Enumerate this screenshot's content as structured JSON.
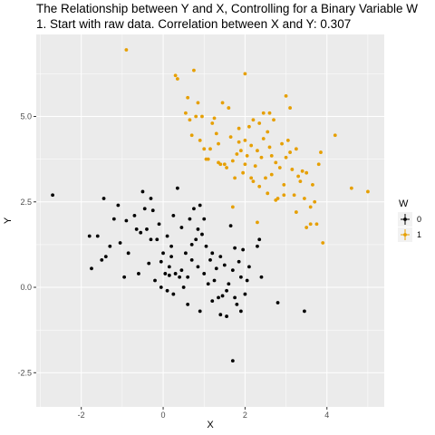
{
  "chart_data": {
    "type": "scatter",
    "title": "The Relationship between Y and X, Controlling for a Binary Variable W",
    "subtitle": "1. Start with raw data. Correlation between X and Y: 0.307",
    "xlabel": "X",
    "ylabel": "Y",
    "xlim": [
      -3.1,
      5.4
    ],
    "ylim": [
      -3.5,
      7.4
    ],
    "xticks": [
      -2,
      0,
      2,
      4
    ],
    "xtick_labels": [
      "-2",
      "0",
      "2",
      "4"
    ],
    "yticks": [
      -2.5,
      0.0,
      2.5,
      5.0
    ],
    "ytick_labels": [
      "-2.5",
      "0.0",
      "2.5",
      "5.0"
    ],
    "grid": true,
    "panel_background": "#ebebeb",
    "legend": {
      "title": "W",
      "position": "right",
      "entries": [
        "0",
        "1"
      ]
    },
    "series": [
      {
        "name": "0",
        "color": "#000000",
        "points": [
          [
            -2.7,
            2.7
          ],
          [
            -1.8,
            1.5
          ],
          [
            -1.75,
            0.55
          ],
          [
            -1.6,
            1.5
          ],
          [
            -1.5,
            0.8
          ],
          [
            -1.45,
            2.6
          ],
          [
            -1.4,
            0.9
          ],
          [
            -1.3,
            1.2
          ],
          [
            -1.2,
            2.0
          ],
          [
            -1.1,
            2.4
          ],
          [
            -1.05,
            1.3
          ],
          [
            -0.95,
            0.3
          ],
          [
            -0.9,
            1.95
          ],
          [
            -0.85,
            1.0
          ],
          [
            -0.7,
            2.1
          ],
          [
            -0.65,
            1.7
          ],
          [
            -0.6,
            0.4
          ],
          [
            -0.55,
            1.6
          ],
          [
            -0.5,
            2.8
          ],
          [
            -0.45,
            2.3
          ],
          [
            -0.4,
            1.7
          ],
          [
            -0.35,
            0.7
          ],
          [
            -0.3,
            1.4
          ],
          [
            -0.25,
            2.25
          ],
          [
            -0.2,
            0.2
          ],
          [
            -0.15,
            1.4
          ],
          [
            -0.1,
            1.85
          ],
          [
            -0.05,
            0.0
          ],
          [
            0.0,
            1.0
          ],
          [
            0.05,
            0.4
          ],
          [
            0.1,
            1.5
          ],
          [
            0.15,
            0.6
          ],
          [
            0.2,
            1.2
          ],
          [
            0.25,
            2.1
          ],
          [
            0.3,
            0.4
          ],
          [
            0.35,
            2.9
          ],
          [
            0.4,
            0.3
          ],
          [
            0.45,
            1.75
          ],
          [
            0.5,
            0.0
          ],
          [
            0.55,
            1.0
          ],
          [
            0.6,
            0.3
          ],
          [
            0.65,
            2.0
          ],
          [
            0.7,
            0.8
          ],
          [
            0.75,
            2.3
          ],
          [
            0.8,
            1.4
          ],
          [
            0.85,
            0.6
          ],
          [
            0.9,
            2.4
          ],
          [
            0.95,
            1.55
          ],
          [
            1.0,
            0.4
          ],
          [
            1.05,
            1.2
          ],
          [
            1.1,
            0.1
          ],
          [
            1.15,
            0.8
          ],
          [
            1.2,
            1.0
          ],
          [
            1.25,
            0.2
          ],
          [
            1.3,
            0.55
          ],
          [
            1.35,
            -0.3
          ],
          [
            1.4,
            0.9
          ],
          [
            1.45,
            -0.25
          ],
          [
            1.5,
            0.65
          ],
          [
            1.55,
            -0.1
          ],
          [
            1.6,
            0.1
          ],
          [
            1.65,
            1.8
          ],
          [
            1.7,
            0.5
          ],
          [
            1.75,
            1.15
          ],
          [
            1.8,
            -0.5
          ],
          [
            1.85,
            0.75
          ],
          [
            1.9,
            0.3
          ],
          [
            1.95,
            1.1
          ],
          [
            2.0,
            -0.2
          ],
          [
            2.05,
            0.2
          ],
          [
            2.1,
            0.6
          ],
          [
            2.3,
            1.2
          ],
          [
            2.4,
            0.3
          ],
          [
            0.1,
            -0.1
          ],
          [
            0.25,
            -0.2
          ],
          [
            0.6,
            -0.5
          ],
          [
            0.9,
            -0.7
          ],
          [
            1.2,
            -0.4
          ],
          [
            1.4,
            -0.8
          ],
          [
            1.55,
            -0.85
          ],
          [
            1.75,
            -0.3
          ],
          [
            1.9,
            -0.7
          ],
          [
            2.8,
            -0.45
          ],
          [
            3.45,
            -0.7
          ],
          [
            1.7,
            -2.15
          ],
          [
            2.35,
            1.4
          ],
          [
            -0.05,
            0.75
          ],
          [
            0.45,
            0.5
          ],
          [
            0.7,
            1.25
          ],
          [
            1.0,
            2.0
          ],
          [
            0.2,
            0.9
          ],
          [
            0.85,
            1.7
          ],
          [
            -0.3,
            2.6
          ],
          [
            0.15,
            0.35
          ]
        ]
      },
      {
        "name": "1",
        "color": "#e69f00",
        "points": [
          [
            -0.9,
            6.95
          ],
          [
            0.3,
            6.2
          ],
          [
            0.35,
            6.1
          ],
          [
            0.75,
            6.35
          ],
          [
            2.0,
            6.25
          ],
          [
            0.55,
            5.1
          ],
          [
            0.6,
            5.55
          ],
          [
            0.65,
            4.9
          ],
          [
            0.7,
            4.45
          ],
          [
            0.8,
            5.0
          ],
          [
            0.85,
            5.4
          ],
          [
            0.9,
            4.3
          ],
          [
            0.95,
            5.0
          ],
          [
            1.0,
            4.05
          ],
          [
            1.05,
            3.75
          ],
          [
            1.1,
            3.75
          ],
          [
            1.15,
            4.05
          ],
          [
            1.2,
            4.8
          ],
          [
            1.25,
            4.95
          ],
          [
            1.3,
            4.5
          ],
          [
            1.35,
            4.2
          ],
          [
            1.4,
            3.6
          ],
          [
            1.45,
            5.4
          ],
          [
            1.5,
            3.6
          ],
          [
            1.55,
            3.5
          ],
          [
            1.6,
            5.25
          ],
          [
            1.65,
            4.4
          ],
          [
            1.7,
            3.7
          ],
          [
            1.75,
            3.2
          ],
          [
            1.8,
            3.9
          ],
          [
            1.85,
            4.65
          ],
          [
            1.9,
            4.0
          ],
          [
            1.95,
            3.35
          ],
          [
            2.0,
            4.3
          ],
          [
            2.05,
            3.85
          ],
          [
            2.1,
            4.7
          ],
          [
            2.15,
            4.15
          ],
          [
            2.2,
            3.1
          ],
          [
            2.25,
            3.55
          ],
          [
            2.3,
            4.0
          ],
          [
            2.35,
            4.8
          ],
          [
            2.4,
            3.8
          ],
          [
            2.45,
            4.35
          ],
          [
            2.5,
            3.2
          ],
          [
            2.55,
            4.55
          ],
          [
            2.6,
            4.1
          ],
          [
            2.65,
            3.3
          ],
          [
            2.7,
            4.9
          ],
          [
            2.75,
            3.65
          ],
          [
            2.8,
            2.6
          ],
          [
            2.85,
            3.5
          ],
          [
            2.9,
            4.2
          ],
          [
            2.95,
            3.0
          ],
          [
            3.0,
            3.8
          ],
          [
            3.05,
            4.3
          ],
          [
            3.1,
            3.95
          ],
          [
            3.15,
            3.45
          ],
          [
            3.2,
            2.7
          ],
          [
            3.25,
            4.05
          ],
          [
            3.3,
            3.25
          ],
          [
            3.35,
            3.1
          ],
          [
            3.4,
            3.4
          ],
          [
            3.45,
            2.6
          ],
          [
            3.5,
            3.35
          ],
          [
            3.6,
            2.35
          ],
          [
            3.65,
            3.0
          ],
          [
            3.7,
            2.5
          ],
          [
            3.8,
            3.6
          ],
          [
            3.9,
            1.3
          ],
          [
            4.2,
            4.45
          ],
          [
            4.6,
            2.9
          ],
          [
            5.0,
            2.8
          ],
          [
            3.0,
            5.6
          ],
          [
            3.1,
            5.25
          ],
          [
            2.6,
            5.1
          ],
          [
            2.45,
            5.1
          ],
          [
            2.2,
            4.9
          ],
          [
            1.85,
            4.25
          ],
          [
            2.0,
            3.6
          ],
          [
            2.15,
            3.2
          ],
          [
            2.35,
            2.95
          ],
          [
            2.55,
            2.75
          ],
          [
            2.75,
            2.55
          ],
          [
            2.95,
            2.7
          ],
          [
            3.25,
            2.2
          ],
          [
            3.5,
            1.75
          ],
          [
            3.75,
            1.85
          ],
          [
            2.3,
            1.9
          ],
          [
            1.7,
            2.35
          ],
          [
            3.85,
            3.95
          ],
          [
            3.6,
            1.85
          ],
          [
            1.35,
            3.65
          ],
          [
            2.65,
            3.85
          ]
        ]
      }
    ]
  }
}
